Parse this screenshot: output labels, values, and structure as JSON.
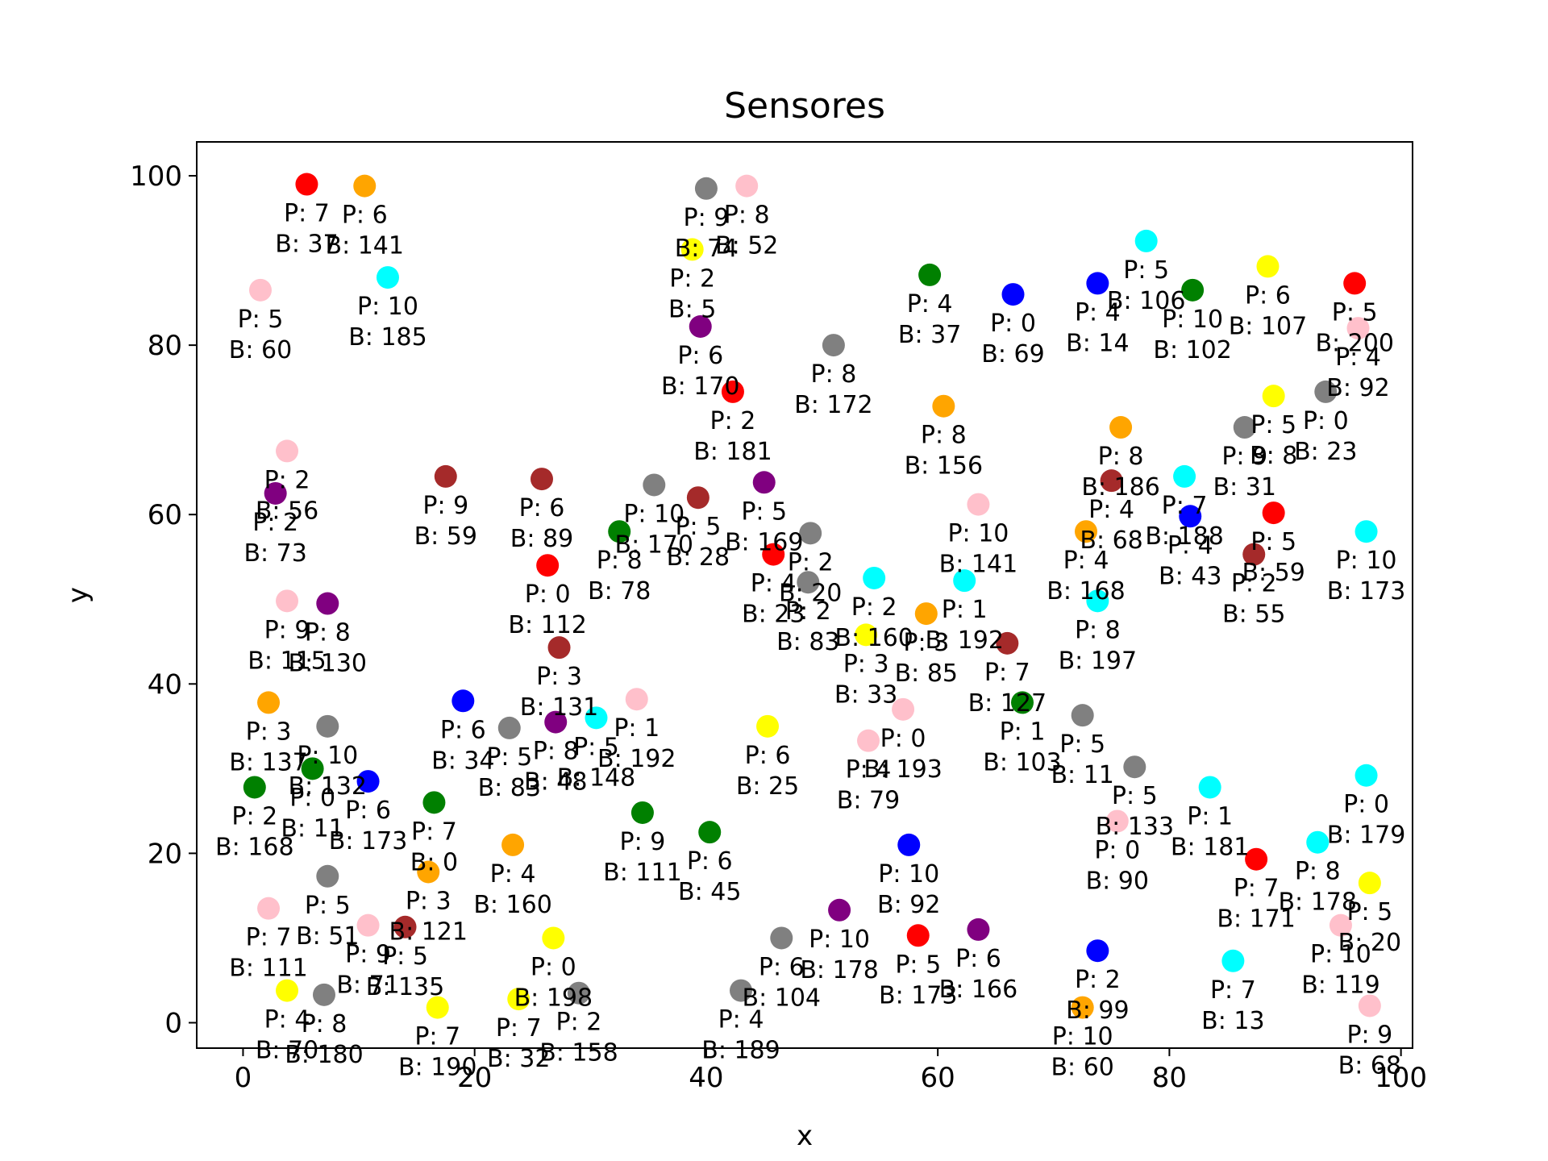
{
  "chart_data": {
    "type": "scatter",
    "title": "Sensores",
    "xlabel": "x",
    "ylabel": "y",
    "xlim": [
      -4,
      101
    ],
    "ylim": [
      -3,
      104
    ],
    "xticks": [
      0,
      20,
      40,
      60,
      80,
      100
    ],
    "yticks": [
      0,
      20,
      40,
      60,
      80,
      100
    ],
    "grid": false,
    "points": [
      {
        "x": 5.5,
        "y": 99,
        "color": "#ff0000",
        "p": "P: 7",
        "b": "B: 37"
      },
      {
        "x": 10.5,
        "y": 98.8,
        "color": "#ffa500",
        "p": "P: 6",
        "b": "B: 141"
      },
      {
        "x": 1.5,
        "y": 86.5,
        "color": "#ffc0cb",
        "p": "P: 5",
        "b": "B: 60"
      },
      {
        "x": 12.5,
        "y": 88,
        "color": "#00ffff",
        "p": "P: 10",
        "b": "B: 185"
      },
      {
        "x": 3.8,
        "y": 67.5,
        "color": "#ffc0cb",
        "p": "P: 2",
        "b": "B: 56"
      },
      {
        "x": 2.8,
        "y": 62.5,
        "color": "#800080",
        "p": "P: 2",
        "b": "B: 73"
      },
      {
        "x": 17.5,
        "y": 64.5,
        "color": "#a52a2a",
        "p": "P: 9",
        "b": "B: 59"
      },
      {
        "x": 3.8,
        "y": 49.8,
        "color": "#ffc0cb",
        "p": "P: 9",
        "b": "B: 115"
      },
      {
        "x": 7.3,
        "y": 49.5,
        "color": "#800080",
        "p": "P: 8",
        "b": "B: 130"
      },
      {
        "x": 2.2,
        "y": 37.8,
        "color": "#ffa500",
        "p": "P: 3",
        "b": "B: 137"
      },
      {
        "x": 7.3,
        "y": 35,
        "color": "#808080",
        "p": "P: 10",
        "b": "B: 132"
      },
      {
        "x": 1,
        "y": 27.8,
        "color": "#008000",
        "p": "P: 2",
        "b": "B: 168"
      },
      {
        "x": 6,
        "y": 30,
        "color": "#008000",
        "p": "P: 0",
        "b": "B: 11"
      },
      {
        "x": 10.8,
        "y": 28.5,
        "color": "#0000ff",
        "p": "P: 6",
        "b": "B: 173"
      },
      {
        "x": 16.5,
        "y": 26,
        "color": "#008000",
        "p": "P: 7",
        "b": "B: 0"
      },
      {
        "x": 19,
        "y": 38,
        "color": "#0000ff",
        "p": "P: 6",
        "b": "B: 34"
      },
      {
        "x": 16,
        "y": 17.8,
        "color": "#ffa500",
        "p": "P: 3",
        "b": "B: 121"
      },
      {
        "x": 7.3,
        "y": 17.3,
        "color": "#808080",
        "p": "P: 5",
        "b": "B: 51"
      },
      {
        "x": 2.2,
        "y": 13.5,
        "color": "#ffc0cb",
        "p": "P: 7",
        "b": "B: 111"
      },
      {
        "x": 10.8,
        "y": 11.5,
        "color": "#ffc0cb",
        "p": "P: 9",
        "b": "B: 71"
      },
      {
        "x": 14,
        "y": 11.3,
        "color": "#a52a2a",
        "p": "P: 5",
        "b": "B: 135"
      },
      {
        "x": 3.8,
        "y": 3.8,
        "color": "#ffff00",
        "p": "P: 4",
        "b": "B: 70"
      },
      {
        "x": 7,
        "y": 3.3,
        "color": "#808080",
        "p": "P: 8",
        "b": "B: 180"
      },
      {
        "x": 16.8,
        "y": 1.8,
        "color": "#ffff00",
        "p": "P: 7",
        "b": "B: 190"
      },
      {
        "x": 23,
        "y": 34.8,
        "color": "#808080",
        "p": "P: 5",
        "b": "B: 83"
      },
      {
        "x": 23.3,
        "y": 21,
        "color": "#ffa500",
        "p": "P: 4",
        "b": "B: 160"
      },
      {
        "x": 26.8,
        "y": 10,
        "color": "#ffff00",
        "p": "P: 0",
        "b": "B: 198"
      },
      {
        "x": 23.8,
        "y": 2.8,
        "color": "#ffff00",
        "p": "P: 7",
        "b": "B: 32"
      },
      {
        "x": 29,
        "y": 3.5,
        "color": "#808080",
        "p": "P: 2",
        "b": "B: 158"
      },
      {
        "x": 25.8,
        "y": 64.2,
        "color": "#a52a2a",
        "p": "P: 6",
        "b": "B: 89"
      },
      {
        "x": 26.3,
        "y": 54,
        "color": "#ff0000",
        "p": "P: 0",
        "b": "B: 112"
      },
      {
        "x": 27.3,
        "y": 44.3,
        "color": "#a52a2a",
        "p": "P: 3",
        "b": "B: 131"
      },
      {
        "x": 27,
        "y": 35.5,
        "color": "#800080",
        "p": "P: 8",
        "b": "B: 48"
      },
      {
        "x": 30.5,
        "y": 36,
        "color": "#00ffff",
        "p": "P: 5",
        "b": "B: 148"
      },
      {
        "x": 34,
        "y": 38.2,
        "color": "#ffc0cb",
        "p": "P: 1",
        "b": "B: 192"
      },
      {
        "x": 32.5,
        "y": 58,
        "color": "#008000",
        "p": "P: 8",
        "b": "B: 78"
      },
      {
        "x": 35.5,
        "y": 63.5,
        "color": "#808080",
        "p": "P: 10",
        "b": "B: 170"
      },
      {
        "x": 34.5,
        "y": 24.8,
        "color": "#008000",
        "p": "P: 9",
        "b": "B: 111"
      },
      {
        "x": 40,
        "y": 98.5,
        "color": "#808080",
        "p": "P: 9",
        "b": "B: 74"
      },
      {
        "x": 43.5,
        "y": 98.8,
        "color": "#ffc0cb",
        "p": "P: 8",
        "b": "B: 52"
      },
      {
        "x": 38.8,
        "y": 91.3,
        "color": "#ffff00",
        "p": "P: 2",
        "b": "B: 5"
      },
      {
        "x": 39.5,
        "y": 82.2,
        "color": "#800080",
        "p": "P: 6",
        "b": "B: 170"
      },
      {
        "x": 42.3,
        "y": 74.5,
        "color": "#ff0000",
        "p": "P: 2",
        "b": "B: 181"
      },
      {
        "x": 39.3,
        "y": 62,
        "color": "#a52a2a",
        "p": "P: 5",
        "b": "B: 28"
      },
      {
        "x": 45,
        "y": 63.8,
        "color": "#800080",
        "p": "P: 5",
        "b": "B: 169"
      },
      {
        "x": 45.8,
        "y": 55.3,
        "color": "#ff0000",
        "p": "P: 4",
        "b": "B: 23"
      },
      {
        "x": 49,
        "y": 57.8,
        "color": "#808080",
        "p": "P: 2",
        "b": "B: 20"
      },
      {
        "x": 48.8,
        "y": 52,
        "color": "#808080",
        "p": "P: 2",
        "b": "B: 83"
      },
      {
        "x": 51,
        "y": 80,
        "color": "#808080",
        "p": "P: 8",
        "b": "B: 172"
      },
      {
        "x": 45.3,
        "y": 35,
        "color": "#ffff00",
        "p": "P: 6",
        "b": "B: 25"
      },
      {
        "x": 40.3,
        "y": 22.5,
        "color": "#008000",
        "p": "P: 6",
        "b": "B: 45"
      },
      {
        "x": 46.5,
        "y": 10,
        "color": "#808080",
        "p": "P: 6",
        "b": "B: 104"
      },
      {
        "x": 43,
        "y": 3.8,
        "color": "#808080",
        "p": "P: 4",
        "b": "B: 189"
      },
      {
        "x": 51.5,
        "y": 13.3,
        "color": "#800080",
        "p": "P: 10",
        "b": "B: 178"
      },
      {
        "x": 54.5,
        "y": 52.5,
        "color": "#00ffff",
        "p": "P: 2",
        "b": "B: 160"
      },
      {
        "x": 53.8,
        "y": 45.8,
        "color": "#ffff00",
        "p": "P: 3",
        "b": "B: 33"
      },
      {
        "x": 59,
        "y": 48.3,
        "color": "#ffa500",
        "p": "P: 3",
        "b": "B: 85"
      },
      {
        "x": 62.3,
        "y": 52.2,
        "color": "#00ffff",
        "p": "P: 1",
        "b": "B: 192"
      },
      {
        "x": 63.5,
        "y": 61.2,
        "color": "#ffc0cb",
        "p": "P: 10",
        "b": "B: 141"
      },
      {
        "x": 60.5,
        "y": 72.8,
        "color": "#ffa500",
        "p": "P: 8",
        "b": "B: 156"
      },
      {
        "x": 59.3,
        "y": 88.3,
        "color": "#008000",
        "p": "P: 4",
        "b": "B: 37"
      },
      {
        "x": 66.5,
        "y": 86,
        "color": "#0000ff",
        "p": "P: 0",
        "b": "B: 69"
      },
      {
        "x": 66,
        "y": 44.8,
        "color": "#a52a2a",
        "p": "P: 7",
        "b": "B: 127"
      },
      {
        "x": 67.3,
        "y": 37.8,
        "color": "#008000",
        "p": "P: 1",
        "b": "B: 103"
      },
      {
        "x": 57,
        "y": 37,
        "color": "#ffc0cb",
        "p": "P: 0",
        "b": "B: 193"
      },
      {
        "x": 54,
        "y": 33.3,
        "color": "#ffc0cb",
        "p": "P: 4",
        "b": "B: 79"
      },
      {
        "x": 57.5,
        "y": 21,
        "color": "#0000ff",
        "p": "P: 10",
        "b": "B: 92"
      },
      {
        "x": 58.3,
        "y": 10.3,
        "color": "#ff0000",
        "p": "P: 5",
        "b": "B: 173"
      },
      {
        "x": 63.5,
        "y": 11,
        "color": "#800080",
        "p": "P: 6",
        "b": "B: 166"
      },
      {
        "x": 73.8,
        "y": 87.3,
        "color": "#0000ff",
        "p": "P: 4",
        "b": "B: 14"
      },
      {
        "x": 78,
        "y": 92.3,
        "color": "#00ffff",
        "p": "P: 5",
        "b": "B: 106"
      },
      {
        "x": 82,
        "y": 86.5,
        "color": "#008000",
        "p": "P: 10",
        "b": "B: 102"
      },
      {
        "x": 75.8,
        "y": 70.3,
        "color": "#ffa500",
        "p": "P: 8",
        "b": "B: 186"
      },
      {
        "x": 75,
        "y": 64,
        "color": "#a52a2a",
        "p": "P: 4",
        "b": "B: 68"
      },
      {
        "x": 72.8,
        "y": 58,
        "color": "#ffa500",
        "p": "P: 4",
        "b": "B: 168"
      },
      {
        "x": 73.8,
        "y": 49.8,
        "color": "#00ffff",
        "p": "P: 8",
        "b": "B: 197"
      },
      {
        "x": 81.3,
        "y": 64.5,
        "color": "#00ffff",
        "p": "P: 7",
        "b": "B: 188"
      },
      {
        "x": 81.8,
        "y": 59.8,
        "color": "#0000ff",
        "p": "P: 4",
        "b": "B: 43"
      },
      {
        "x": 72.5,
        "y": 36.3,
        "color": "#808080",
        "p": "P: 5",
        "b": "B: 11"
      },
      {
        "x": 77,
        "y": 30.2,
        "color": "#808080",
        "p": "P: 5",
        "b": "B: 133"
      },
      {
        "x": 75.5,
        "y": 23.8,
        "color": "#ffc0cb",
        "p": "P: 0",
        "b": "B: 90"
      },
      {
        "x": 83.5,
        "y": 27.8,
        "color": "#00ffff",
        "p": "P: 1",
        "b": "B: 181"
      },
      {
        "x": 73.8,
        "y": 8.5,
        "color": "#0000ff",
        "p": "P: 2",
        "b": "B: 99"
      },
      {
        "x": 72.5,
        "y": 1.8,
        "color": "#ffa500",
        "p": "P: 10",
        "b": "B: 60"
      },
      {
        "x": 85.5,
        "y": 7.3,
        "color": "#00ffff",
        "p": "P: 7",
        "b": "B: 13"
      },
      {
        "x": 87.5,
        "y": 19.3,
        "color": "#ff0000",
        "p": "P: 7",
        "b": "B: 171"
      },
      {
        "x": 88.5,
        "y": 89.3,
        "color": "#ffff00",
        "p": "P: 6",
        "b": "B: 107"
      },
      {
        "x": 96,
        "y": 87.3,
        "color": "#ff0000",
        "p": "P: 5",
        "b": "B: 200"
      },
      {
        "x": 96.3,
        "y": 82,
        "color": "#ffc0cb",
        "p": "P: 4",
        "b": "B: 92"
      },
      {
        "x": 93.5,
        "y": 74.5,
        "color": "#808080",
        "p": "P: 0",
        "b": "B: 23"
      },
      {
        "x": 89,
        "y": 74,
        "color": "#ffff00",
        "p": "P: 5",
        "b": "B: 8"
      },
      {
        "x": 86.5,
        "y": 70.3,
        "color": "#808080",
        "p": "P: 9",
        "b": "B: 31"
      },
      {
        "x": 89,
        "y": 60.2,
        "color": "#ff0000",
        "p": "P: 5",
        "b": "B: 59"
      },
      {
        "x": 87.3,
        "y": 55.3,
        "color": "#a52a2a",
        "p": "P: 2",
        "b": "B: 55"
      },
      {
        "x": 97,
        "y": 58,
        "color": "#00ffff",
        "p": "P: 10",
        "b": "B: 173"
      },
      {
        "x": 97,
        "y": 29.2,
        "color": "#00ffff",
        "p": "P: 0",
        "b": "B: 179"
      },
      {
        "x": 92.8,
        "y": 21.3,
        "color": "#00ffff",
        "p": "P: 8",
        "b": "B: 178"
      },
      {
        "x": 97.3,
        "y": 16.5,
        "color": "#ffff00",
        "p": "P: 5",
        "b": "B: 20"
      },
      {
        "x": 94.8,
        "y": 11.5,
        "color": "#ffc0cb",
        "p": "P: 10",
        "b": "B: 119"
      },
      {
        "x": 97.3,
        "y": 2,
        "color": "#ffc0cb",
        "p": "P: 9",
        "b": "B: 68"
      }
    ]
  }
}
